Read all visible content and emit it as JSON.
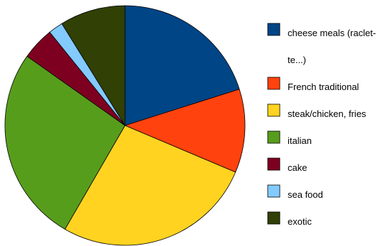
{
  "chart_data": {
    "type": "pie",
    "start": "12 o'clock",
    "direction": "clockwise",
    "legend_position": "right",
    "categories": [
      "cheese meals (raclette...)",
      "French traditional",
      "steak/chicken, fries",
      "italian",
      "cake",
      "sea food",
      "exotic"
    ],
    "legend_lines": [
      [
        "cheese meals (raclet-",
        "te...)"
      ],
      [
        "French traditional"
      ],
      [
        "steak/chicken, fries"
      ],
      [
        "italian"
      ],
      [
        "cake"
      ],
      [
        "sea food"
      ],
      [
        "exotic"
      ]
    ],
    "values": [
      20.5,
      11.5,
      27.5,
      27.0,
      4.5,
      2.0,
      9.0
    ],
    "colors": [
      "#004586",
      "#ff420e",
      "#ffd320",
      "#579d1c",
      "#7e0021",
      "#83caff",
      "#314004"
    ],
    "outline_color": "#000000"
  }
}
